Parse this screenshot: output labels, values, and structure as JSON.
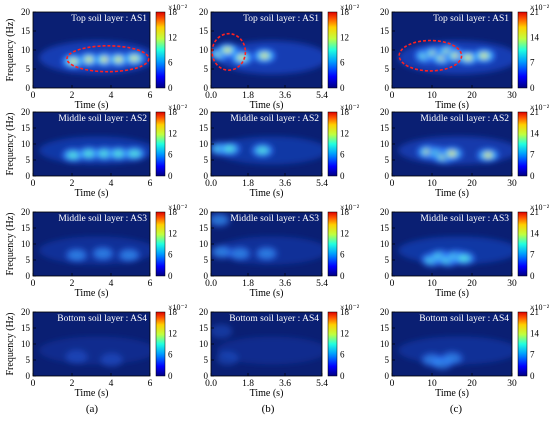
{
  "chart_data": [
    {
      "type": "heatmap",
      "panel": "a",
      "row": 1,
      "label": "Top soil layer : AS1",
      "xlabel": "Time (s)",
      "ylabel": "Frequency (Hz)",
      "xlim": [
        0,
        6.7
      ],
      "ylim": [
        0,
        20
      ],
      "xticks": [
        "0",
        "2",
        "4",
        "6"
      ],
      "yticks": [
        "0",
        "5",
        "10",
        "15",
        "20"
      ],
      "cbar_ticks": [
        "0",
        "6",
        "12",
        "18"
      ],
      "cbar_exp": "×10⁻²",
      "peaks": [
        [
          3.2,
          7.5
        ],
        [
          4.1,
          7.5
        ],
        [
          4.9,
          7.5
        ],
        [
          5.8,
          7.8
        ],
        [
          2.3,
          7.0
        ]
      ],
      "intensity": 1.0,
      "ellipse": true
    },
    {
      "type": "heatmap",
      "panel": "b",
      "row": 1,
      "label": "Top soil layer : AS1",
      "xlabel": "Time (s)",
      "ylabel": "",
      "xlim": [
        0,
        5.4
      ],
      "ylim": [
        0,
        20
      ],
      "xticks": [
        "0.0",
        "1.8",
        "3.6",
        "5.4"
      ],
      "yticks": [
        "0",
        "5",
        "10",
        "15",
        "20"
      ],
      "cbar_ticks": [
        "0",
        "6",
        "12",
        "18"
      ],
      "cbar_exp": "×10⁻²",
      "peaks": [
        [
          0.45,
          9.0
        ],
        [
          0.8,
          10.0
        ],
        [
          1.5,
          8.0
        ],
        [
          2.6,
          8.5
        ]
      ],
      "intensity": 1.0,
      "ellipse": true
    },
    {
      "type": "heatmap",
      "panel": "c",
      "row": 1,
      "label": "Top soil layer : AS1",
      "xlabel": "Time (s)",
      "ylabel": "",
      "xlim": [
        0,
        30
      ],
      "ylim": [
        0,
        20
      ],
      "xticks": [
        "0",
        "10",
        "20",
        "30"
      ],
      "yticks": [
        "0",
        "5",
        "10",
        "15",
        "20"
      ],
      "cbar_ticks": [
        "0",
        "7",
        "14",
        "21"
      ],
      "cbar_exp": "×10⁻²",
      "peaks": [
        [
          8.5,
          8.5
        ],
        [
          10.5,
          9.0
        ],
        [
          12.5,
          8.0
        ],
        [
          14.0,
          9.5
        ],
        [
          16.0,
          8.5
        ],
        [
          19.0,
          8.0
        ],
        [
          23.0,
          8.5
        ]
      ],
      "intensity": 1.0,
      "ellipse": true
    },
    {
      "type": "heatmap",
      "panel": "a",
      "row": 2,
      "label": "Middle soil layer : AS2",
      "xlabel": "Time (s)",
      "ylabel": "Frequency (Hz)",
      "xlim": [
        0,
        6.7
      ],
      "ylim": [
        0,
        20
      ],
      "xticks": [
        "0",
        "2",
        "4",
        "6"
      ],
      "yticks": [
        "0",
        "5",
        "10",
        "15",
        "20"
      ],
      "cbar_ticks": [
        "0",
        "6",
        "12",
        "18"
      ],
      "cbar_exp": "×10⁻²",
      "peaks": [
        [
          2.3,
          6.5
        ],
        [
          3.2,
          7.0
        ],
        [
          4.1,
          7.0
        ],
        [
          4.9,
          7.0
        ],
        [
          5.8,
          7.0
        ]
      ],
      "intensity": 0.75,
      "ellipse": false
    },
    {
      "type": "heatmap",
      "panel": "b",
      "row": 2,
      "label": "Middle soil layer : AS2",
      "xlabel": "Time (s)",
      "ylabel": "",
      "xlim": [
        0,
        5.4
      ],
      "ylim": [
        0,
        20
      ],
      "xticks": [
        "0.0",
        "1.8",
        "3.6",
        "5.4"
      ],
      "yticks": [
        "0",
        "5",
        "10",
        "15",
        "20"
      ],
      "cbar_ticks": [
        "0",
        "6",
        "12",
        "18"
      ],
      "cbar_exp": "×10⁻²",
      "peaks": [
        [
          0.45,
          8.5
        ],
        [
          0.9,
          8.5
        ],
        [
          2.5,
          8.0
        ]
      ],
      "intensity": 0.7,
      "ellipse": false
    },
    {
      "type": "heatmap",
      "panel": "c",
      "row": 2,
      "label": "Middle soil layer : AS2",
      "xlabel": "Time (s)",
      "ylabel": "",
      "xlim": [
        0,
        30
      ],
      "ylim": [
        0,
        20
      ],
      "xticks": [
        "0",
        "10",
        "20",
        "30"
      ],
      "yticks": [
        "0",
        "5",
        "10",
        "15",
        "20"
      ],
      "cbar_ticks": [
        "0",
        "7",
        "14",
        "21"
      ],
      "cbar_exp": "×10⁻²",
      "peaks": [
        [
          9.0,
          7.5
        ],
        [
          11.5,
          7.0
        ],
        [
          13.0,
          6.0
        ],
        [
          15.0,
          7.0
        ],
        [
          24.0,
          6.5
        ]
      ],
      "intensity": 0.85,
      "ellipse": false
    },
    {
      "type": "heatmap",
      "panel": "a",
      "row": 3,
      "label": "Middle soil layer : AS3",
      "xlabel": "Time (s)",
      "ylabel": "Frequency (Hz)",
      "xlim": [
        0,
        6.7
      ],
      "ylim": [
        0,
        20
      ],
      "xticks": [
        "0",
        "2",
        "4",
        "6"
      ],
      "yticks": [
        "0",
        "5",
        "10",
        "15",
        "20"
      ],
      "cbar_ticks": [
        "0",
        "6",
        "12",
        "18"
      ],
      "cbar_exp": "×10⁻²",
      "peaks": [
        [
          2.5,
          6.5
        ],
        [
          4.0,
          7.0
        ],
        [
          5.5,
          6.5
        ]
      ],
      "intensity": 0.45,
      "ellipse": false
    },
    {
      "type": "heatmap",
      "panel": "b",
      "row": 3,
      "label": "Middle soil layer : AS3",
      "xlabel": "Time (s)",
      "ylabel": "",
      "xlim": [
        0,
        5.4
      ],
      "ylim": [
        0,
        20
      ],
      "xticks": [
        "0.0",
        "1.8",
        "3.6",
        "5.4"
      ],
      "yticks": [
        "0",
        "5",
        "10",
        "15",
        "20"
      ],
      "cbar_ticks": [
        "0",
        "6",
        "12",
        "18"
      ],
      "cbar_exp": "×10⁻²",
      "peaks": [
        [
          0.4,
          17.5
        ],
        [
          0.5,
          7.5
        ],
        [
          1.4,
          7.0
        ],
        [
          2.7,
          7.0
        ]
      ],
      "intensity": 0.45,
      "ellipse": false
    },
    {
      "type": "heatmap",
      "panel": "c",
      "row": 3,
      "label": "Middle soil layer : AS3",
      "xlabel": "Time (s)",
      "ylabel": "",
      "xlim": [
        0,
        30
      ],
      "ylim": [
        0,
        20
      ],
      "xticks": [
        "0",
        "10",
        "20",
        "30"
      ],
      "yticks": [
        "0",
        "5",
        "10",
        "15",
        "20"
      ],
      "cbar_ticks": [
        "0",
        "7",
        "14",
        "21"
      ],
      "cbar_exp": "×10⁻²",
      "peaks": [
        [
          10.0,
          5.0
        ],
        [
          12.0,
          6.0
        ],
        [
          14.0,
          5.0
        ],
        [
          16.0,
          6.0
        ],
        [
          18.0,
          5.5
        ]
      ],
      "intensity": 0.7,
      "ellipse": false
    },
    {
      "type": "heatmap",
      "panel": "a",
      "row": 4,
      "label": "Bottom soil layer : AS4",
      "xlabel": "Time (s)",
      "ylabel": "Frequency (Hz)",
      "xlim": [
        0,
        6.7
      ],
      "ylim": [
        0,
        20
      ],
      "xticks": [
        "0",
        "2",
        "4",
        "6"
      ],
      "yticks": [
        "0",
        "5",
        "10",
        "15",
        "20"
      ],
      "cbar_ticks": [
        "0",
        "6",
        "12",
        "18"
      ],
      "cbar_exp": "×10⁻²",
      "peaks": [
        [
          2.5,
          6.0
        ],
        [
          4.5,
          5.0
        ]
      ],
      "intensity": 0.22,
      "ellipse": false
    },
    {
      "type": "heatmap",
      "panel": "b",
      "row": 4,
      "label": "Bottom soil layer : AS4",
      "xlabel": "Time (s)",
      "ylabel": "",
      "xlim": [
        0,
        5.4
      ],
      "ylim": [
        0,
        20
      ],
      "xticks": [
        "0.0",
        "1.8",
        "3.6",
        "5.4"
      ],
      "yticks": [
        "0",
        "5",
        "10",
        "15",
        "20"
      ],
      "cbar_ticks": [
        "0",
        "6",
        "12",
        "18"
      ],
      "cbar_exp": "×10⁻²",
      "peaks": [
        [
          0.5,
          14.0
        ],
        [
          0.8,
          5.5
        ]
      ],
      "intensity": 0.2,
      "ellipse": false
    },
    {
      "type": "heatmap",
      "panel": "c",
      "row": 4,
      "label": "Bottom soil layer : AS4",
      "xlabel": "Time (s)",
      "ylabel": "",
      "xlim": [
        0,
        30
      ],
      "ylim": [
        0,
        20
      ],
      "xticks": [
        "0",
        "10",
        "20",
        "30"
      ],
      "yticks": [
        "0",
        "5",
        "10",
        "15",
        "20"
      ],
      "cbar_ticks": [
        "0",
        "7",
        "14",
        "21"
      ],
      "cbar_exp": "×10⁻²",
      "peaks": [
        [
          10.0,
          5.0
        ],
        [
          12.5,
          4.0
        ],
        [
          15.0,
          5.5
        ]
      ],
      "intensity": 0.42,
      "ellipse": false
    }
  ],
  "column_captions": [
    "(a)",
    "(b)",
    "(c)"
  ],
  "colors": {
    "background": "#0a1f73",
    "low": "#082a8c",
    "ellipse": "#ff2020",
    "frame": "#000000"
  }
}
